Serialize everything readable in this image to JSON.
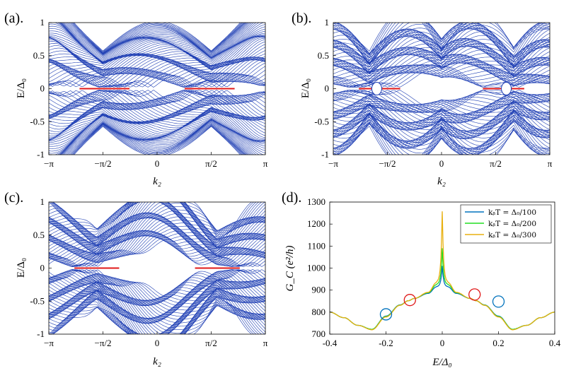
{
  "chart_data": [
    {
      "panel": "a",
      "label": "(a).",
      "type": "line",
      "xlabel": "k₂",
      "ylabel": "E/Δ₀",
      "xlim": [
        -3.14159,
        3.14159
      ],
      "ylim": [
        -1,
        1
      ],
      "xtick_values": [
        -3.14159,
        -1.5708,
        0,
        1.5708,
        3.14159
      ],
      "xtick_labels": [
        "−π",
        "−π/2",
        "0",
        "π/2",
        "π"
      ],
      "ytick_values": [
        1,
        0.5,
        0,
        -0.5,
        -1
      ],
      "ytick_labels": [
        "1",
        "0.5",
        "0",
        "-0.5",
        "-1"
      ],
      "band_color": "#1f3fb4",
      "flat_band_color": "#e01818",
      "bulk_gap": 0.02,
      "flat_bands_k": [
        [
          -2.25,
          -0.8
        ],
        [
          0.8,
          2.25
        ]
      ],
      "gap_openings": []
    },
    {
      "panel": "b",
      "label": "(b).",
      "type": "line",
      "xlabel": "k₂",
      "ylabel": "E/Δ₀",
      "xlim": [
        -3.14159,
        3.14159
      ],
      "ylim": [
        -1,
        1
      ],
      "xtick_values": [
        -3.14159,
        -1.5708,
        0,
        1.5708,
        3.14159
      ],
      "xtick_labels": [
        "−π",
        "−π/2",
        "0",
        "π/2",
        "π"
      ],
      "ytick_values": [
        1,
        0.5,
        0,
        -0.5,
        -1
      ],
      "ytick_labels": [
        "1",
        "0.5",
        "0",
        "-0.5",
        "-1"
      ],
      "band_color": "#1f3fb4",
      "flat_band_color": "#e01818",
      "bulk_gap": 0.02,
      "flat_bands_k": [
        [
          -2.4,
          -1.2
        ],
        [
          1.2,
          2.4
        ]
      ],
      "gap_openings": [
        -1.88,
        1.88
      ]
    },
    {
      "panel": "c",
      "label": "(c).",
      "type": "line",
      "xlabel": "k₂",
      "ylabel": "E/Δ₀",
      "xlim": [
        -3.14159,
        3.14159
      ],
      "ylim": [
        -1,
        1
      ],
      "xtick_values": [
        -3.14159,
        -1.5708,
        0,
        1.5708,
        3.14159
      ],
      "xtick_labels": [
        "−π",
        "−π/2",
        "0",
        "π/2",
        "π"
      ],
      "ytick_values": [
        1,
        0.5,
        0,
        -0.5,
        -1
      ],
      "ytick_labels": [
        "1",
        "0.5",
        "0",
        "-0.5",
        "-1"
      ],
      "band_color": "#1f3fb4",
      "flat_band_color": "#e01818",
      "bulk_gap": 0.02,
      "flat_bands_k": [
        [
          -2.4,
          -1.1
        ],
        [
          1.1,
          2.4
        ]
      ],
      "gap_openings": []
    },
    {
      "panel": "d",
      "label": "(d).",
      "type": "line",
      "xlabel": "E/Δ₀",
      "ylabel": "G_C (e²/h)",
      "xlim": [
        -0.4,
        0.4
      ],
      "ylim": [
        700,
        1300
      ],
      "xtick_values": [
        -0.4,
        -0.2,
        0,
        0.2,
        0.4
      ],
      "xtick_labels": [
        "-0.4",
        "-0.2",
        "0",
        "0.2",
        "0.4"
      ],
      "ytick_values": [
        1300,
        1200,
        1100,
        1000,
        900,
        800,
        700
      ],
      "ytick_labels": [
        "1300",
        "1200",
        "1100",
        "1000",
        "900",
        "800",
        "700"
      ],
      "series": [
        {
          "name": "k_B T = Δ₀/100",
          "legend_label": "kᵦT = Δ₀/100",
          "color": "#0072bd",
          "peak": 1010,
          "x": [
            -0.4,
            -0.35,
            -0.3,
            -0.25,
            -0.2,
            -0.15,
            -0.12,
            -0.1,
            -0.05,
            -0.02,
            0,
            0.02,
            0.05,
            0.1,
            0.12,
            0.15,
            0.2,
            0.25,
            0.3,
            0.35,
            0.4
          ],
          "y": [
            800,
            775,
            740,
            722,
            782,
            833,
            852,
            862,
            885,
            915,
            1010,
            915,
            885,
            862,
            852,
            833,
            782,
            722,
            740,
            775,
            800
          ]
        },
        {
          "name": "k_B T = Δ₀/200",
          "legend_label": "kᵦT = Δ₀/200",
          "color": "#22dd22",
          "peak": 1090,
          "x": [
            -0.4,
            -0.35,
            -0.3,
            -0.25,
            -0.2,
            -0.15,
            -0.12,
            -0.1,
            -0.05,
            -0.02,
            0,
            0.02,
            0.05,
            0.1,
            0.12,
            0.15,
            0.2,
            0.25,
            0.3,
            0.35,
            0.4
          ],
          "y": [
            800,
            775,
            740,
            722,
            780,
            832,
            852,
            862,
            888,
            925,
            1090,
            925,
            888,
            862,
            852,
            832,
            780,
            722,
            740,
            775,
            800
          ]
        },
        {
          "name": "k_B T = Δ₀/300",
          "legend_label": "kᵦT = Δ₀/300",
          "color": "#e8b010",
          "peak": 1258,
          "x": [
            -0.4,
            -0.35,
            -0.3,
            -0.25,
            -0.2,
            -0.15,
            -0.12,
            -0.1,
            -0.05,
            -0.02,
            0,
            0.02,
            0.05,
            0.1,
            0.12,
            0.15,
            0.2,
            0.25,
            0.3,
            0.35,
            0.4
          ],
          "y": [
            800,
            775,
            740,
            720,
            778,
            831,
            852,
            862,
            890,
            935,
            1258,
            935,
            890,
            862,
            852,
            831,
            778,
            720,
            740,
            775,
            800
          ]
        }
      ],
      "circles": [
        {
          "x": -0.2,
          "y": 790,
          "color": "#0072bd"
        },
        {
          "x": -0.115,
          "y": 855,
          "color": "#e01818"
        },
        {
          "x": 0.115,
          "y": 880,
          "color": "#e01818"
        },
        {
          "x": 0.2,
          "y": 848,
          "color": "#0072bd"
        }
      ]
    }
  ]
}
